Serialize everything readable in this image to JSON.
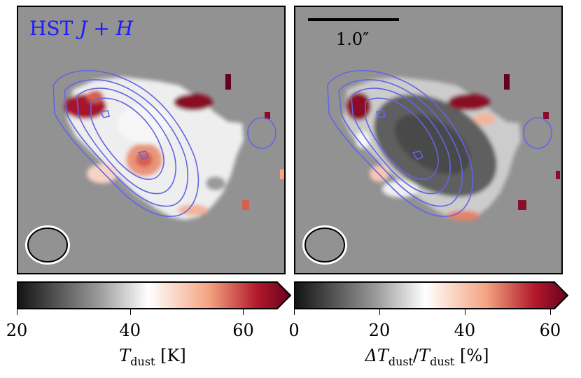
{
  "chart_data": [
    {
      "type": "heatmap",
      "panel": "left",
      "label": "HST J + H",
      "label_color": "#1a1aff",
      "contour_color": "#6464e6",
      "colormap": [
        "#111111",
        "#cfcfcf",
        "#ffffff",
        "#f4a582",
        "#67001f"
      ],
      "background_color": "#929292",
      "colorbar": {
        "min": 20,
        "max": 66,
        "extend": "max",
        "ticks": [
          20,
          40,
          60
        ],
        "title": "T_dust [K]"
      },
      "beam": "ellipse, lower-left"
    },
    {
      "type": "heatmap",
      "panel": "right",
      "scalebar_label": "1.0″",
      "contour_color": "#6464e6",
      "colormap": [
        "#111111",
        "#cfcfcf",
        "#ffffff",
        "#f4a582",
        "#67001f"
      ],
      "background_color": "#929292",
      "colorbar": {
        "min": 0,
        "max": 61,
        "extend": "max",
        "ticks": [
          0,
          20,
          40,
          60
        ],
        "title": "ΔT_dust / T_dust [%]"
      },
      "beam": "ellipse, lower-left"
    }
  ],
  "labels": {
    "hst_prefix": "HST ",
    "hst_bands": "J + H",
    "scalebar": "1.0″",
    "left_title_main": "T",
    "left_title_sub": "dust",
    "left_title_unit": " [K]",
    "right_title_delta": "ΔT",
    "right_title_sub1": "dust",
    "right_title_slash": "/",
    "right_title_T": "T",
    "right_title_sub2": "dust",
    "right_title_unit": " [%]"
  }
}
